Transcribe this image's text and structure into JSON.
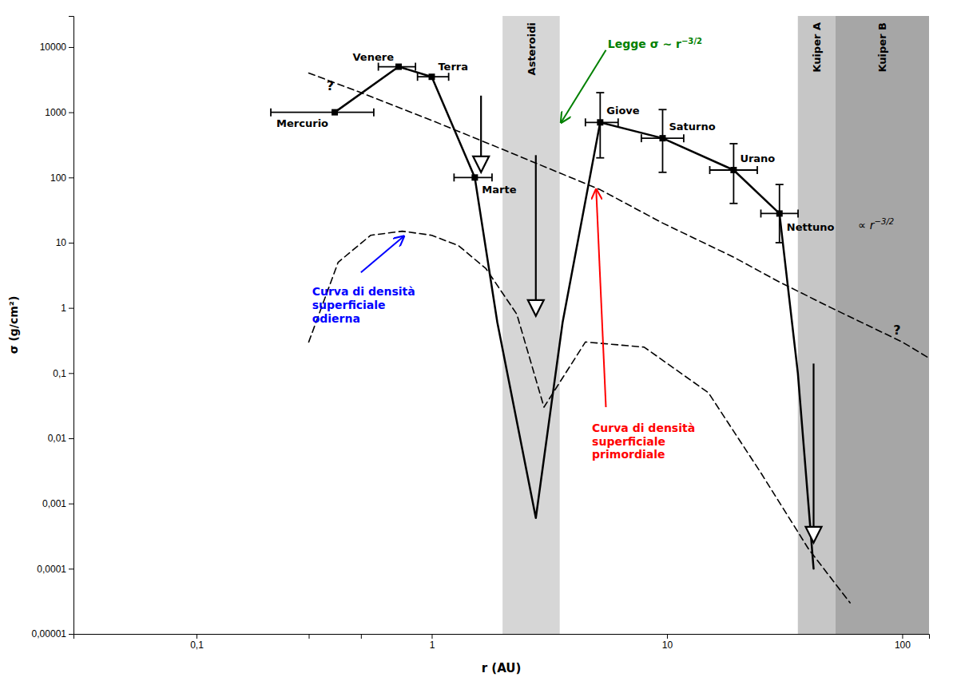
{
  "chart_data": {
    "type": "line",
    "log": true,
    "grid": false,
    "x_label": "r (AU)",
    "y_label": "σ (g/cm²)",
    "xlim": [
      0.03,
      130
    ],
    "ylim": [
      1e-05,
      30000
    ],
    "xticks": [
      {
        "value": 0.1,
        "label": "0,1"
      },
      {
        "value": 0.3,
        "label": null
      },
      {
        "value": 0.5,
        "label": null
      },
      1,
      10,
      100
    ],
    "yticks": [
      {
        "value": 1e-05,
        "label": "0,00001"
      },
      {
        "value": 0.0001,
        "label": "0,0001"
      },
      {
        "value": 0.001,
        "label": "0,001"
      },
      {
        "value": 0.01,
        "label": "0,01"
      },
      {
        "value": 0.1,
        "label": "0,1"
      },
      1,
      10,
      100,
      1000,
      10000
    ],
    "bands": [
      {
        "name": "Asteroidi",
        "xmin": 2.0,
        "xmax": 3.5,
        "color": "#cccccc"
      },
      {
        "name": "Kuiper A",
        "xmin": 36,
        "xmax": 52,
        "color": "#b8b8b8"
      },
      {
        "name": "Kuiper B",
        "xmin": 52,
        "xmax": 130,
        "color": "#909090"
      }
    ],
    "series": [
      {
        "color": "#000000",
        "line_style": "solid",
        "x": [
          0.387,
          0.723,
          1.0,
          1.524,
          1.9,
          2.77,
          3.6,
          5.2,
          9.58,
          19.2,
          30.07,
          36,
          42
        ],
        "values": [
          1000,
          5000,
          3500,
          100,
          0.6,
          0.0006,
          0.6,
          700,
          400,
          130,
          28,
          0.1,
          0.0001
        ]
      },
      {
        "color": "#000000",
        "line_style": "dashed",
        "x": [
          0.3,
          0.5,
          1.0,
          2.0,
          5.2,
          9.58,
          19.2,
          30,
          50,
          100,
          130
        ],
        "values": [
          4000,
          2000,
          750,
          270,
          65,
          20,
          6,
          2.5,
          1.0,
          0.3,
          0.17
        ]
      },
      {
        "color": "#000000",
        "line_style": "dashed",
        "x": [
          0.3,
          0.4,
          0.55,
          0.75,
          1.0,
          1.3,
          1.7,
          2.3,
          3.0,
          4.5,
          8,
          15,
          25,
          40,
          60
        ],
        "values": [
          0.3,
          5,
          13,
          15,
          13,
          9,
          4,
          0.8,
          0.03,
          0.3,
          0.25,
          0.05,
          0.003,
          0.0002,
          3e-05
        ]
      },
      {
        "type": "scatter",
        "marker": "square",
        "color": "#000000",
        "labels": [
          "Mercurio",
          "Venere",
          "Terra",
          "Marte",
          "Giove",
          "Saturno",
          "Urano",
          "Nettuno"
        ],
        "x": [
          0.387,
          0.723,
          1.0,
          1.524,
          5.2,
          9.58,
          19.2,
          30.07
        ],
        "values": [
          1000,
          5000,
          3500,
          100,
          700,
          400,
          130,
          28
        ],
        "xerr_lo": [
          0.18,
          0.13,
          0.13,
          0.28,
          0.7,
          1.8,
          4.0,
          5.0
        ],
        "xerr_hi": [
          0.18,
          0.13,
          0.18,
          0.28,
          1.0,
          2.2,
          5.0,
          6.0
        ],
        "yerr_lo": [
          null,
          null,
          null,
          null,
          500,
          280,
          90,
          18
        ],
        "yerr_hi": [
          null,
          null,
          null,
          null,
          1300,
          700,
          200,
          50
        ]
      }
    ],
    "arrows": [
      {
        "x": 1.62,
        "y_top": 1800,
        "y_bot": 120
      },
      {
        "x": 2.77,
        "y_top": 220,
        "y_bot": 0.75
      },
      {
        "x": 42,
        "y_top": 0.14,
        "y_bot": 0.00025
      }
    ],
    "annotations": [
      {
        "text": "Curva di densità\nsuperficiale\nodierna",
        "x": 0.31,
        "y": 2.2,
        "color": "blue",
        "arrow": {
          "x_from": 0.5,
          "y_from": 3.5,
          "x_to": 0.76,
          "y_to": 12.5
        }
      },
      {
        "text": "Curva di densità\nsuperficiale\nprimordiale",
        "x": 4.8,
        "y": 0.018,
        "color": "red",
        "arrow": {
          "x_from": 5.5,
          "y_from": 0.03,
          "x_to": 5.0,
          "y_to": 65
        }
      },
      {
        "text": "Legge σ ~ r",
        "superscript": "−3/2",
        "x": 5.6,
        "y": 14000,
        "color": "green",
        "arrow": {
          "x_from": 5.5,
          "y_from": 9000,
          "x_to": 3.55,
          "y_to": 700
        }
      },
      {
        "text": "∝ r",
        "superscript": "−3/2",
        "x": 65,
        "y": 18
      },
      {
        "text": "?",
        "x": 0.37,
        "y": 2500
      },
      {
        "text": "?",
        "x": 95,
        "y": 0.45
      }
    ]
  }
}
